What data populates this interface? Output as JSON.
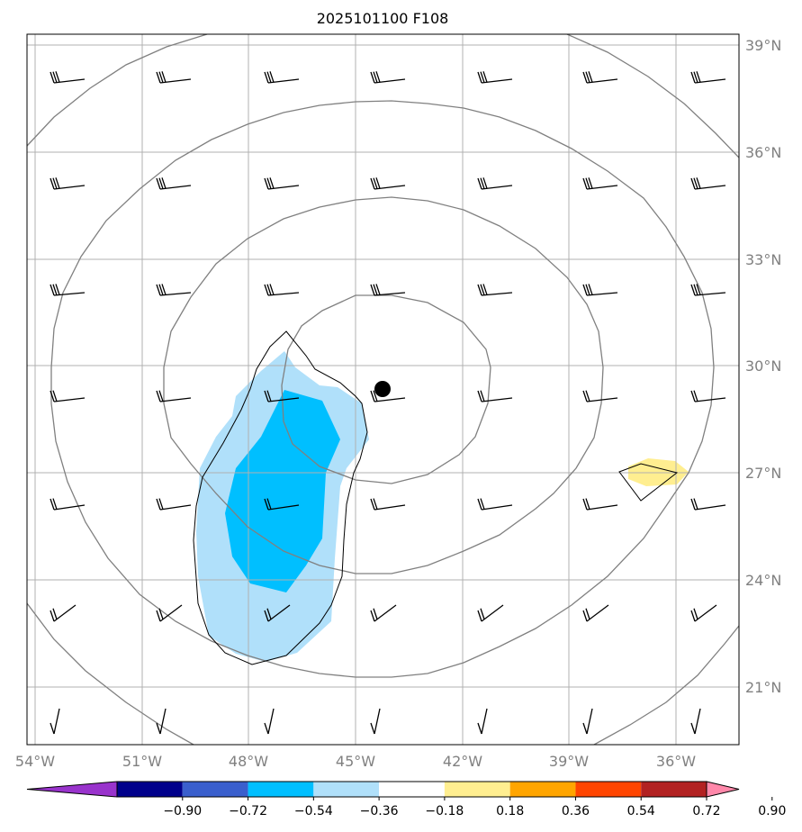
{
  "title": "2025101100 F108",
  "axes": {
    "x_ticks": [
      "54°W",
      "51°W",
      "48°W",
      "45°W",
      "42°W",
      "39°W",
      "36°W"
    ],
    "y_ticks": [
      "39°N",
      "36°N",
      "33°N",
      "30°N",
      "27°N",
      "24°N",
      "21°N"
    ]
  },
  "colorbar": {
    "labels": [
      "−0.90",
      "−0.72",
      "−0.54",
      "−0.36",
      "−0.18",
      "0.18",
      "0.36",
      "0.54",
      "0.72",
      "0.90"
    ],
    "colors": [
      "#9933cc",
      "#00008b",
      "#3a5fcd",
      "#00bfff",
      "#b0e0fa",
      "#ffffff",
      "#ffee90",
      "#ffa500",
      "#ff4500",
      "#b22222",
      "#ff88aa"
    ]
  },
  "colors": {
    "frame": "#000000",
    "grid": "#b0b0b0",
    "contour": "#808080",
    "shade_light_blue": "#b0e0fa",
    "shade_blue": "#00bfff",
    "shade_yellow": "#ffee90",
    "center_marker": "#000000"
  },
  "chart_data": {
    "type": "map",
    "title": "2025101100 F108",
    "lon_range": [
      -54.2,
      -34.3
    ],
    "lat_range": [
      19.5,
      39.3
    ],
    "grid_lon": [
      -54,
      -51,
      -48,
      -45,
      -42,
      -39,
      -36
    ],
    "grid_lat": [
      21,
      24,
      27,
      30,
      33,
      36,
      39
    ],
    "contour_field": "concentric closed contours around a center near 29.3°N, 44.3°W",
    "shaded_regions": [
      {
        "name": "negative-anomaly-light",
        "range": "−0.36 to −0.18",
        "approx_center": [
          -47,
          25.5
        ]
      },
      {
        "name": "negative-anomaly-strong",
        "range": "−0.54 to −0.36",
        "approx_center": [
          -47,
          26.5
        ]
      },
      {
        "name": "positive-anomaly",
        "range": "0.18 to 0.36",
        "approx_center": [
          -36,
          27
        ]
      }
    ],
    "center_marker": {
      "lon": -44.3,
      "lat": 29.3
    },
    "wind_barbs": "7 × 7 grid of wind barbs across the domain"
  }
}
